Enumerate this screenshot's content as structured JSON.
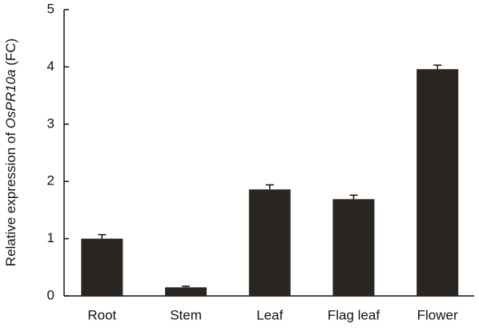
{
  "chart_data": {
    "type": "bar",
    "ylabel_parts": [
      "Relative expression of ",
      "OsPR10a",
      " (FC)"
    ],
    "categories": [
      "Root",
      "Stem",
      "Leaf",
      "Flag leaf",
      "Flower"
    ],
    "values": [
      1.0,
      0.15,
      1.86,
      1.69,
      3.96
    ],
    "errors": [
      0.07,
      0.02,
      0.08,
      0.07,
      0.07
    ],
    "color": "#2b2522",
    "ylim": [
      0,
      5
    ],
    "yticks": [
      0,
      1,
      2,
      3,
      4,
      5
    ],
    "grid": false
  }
}
